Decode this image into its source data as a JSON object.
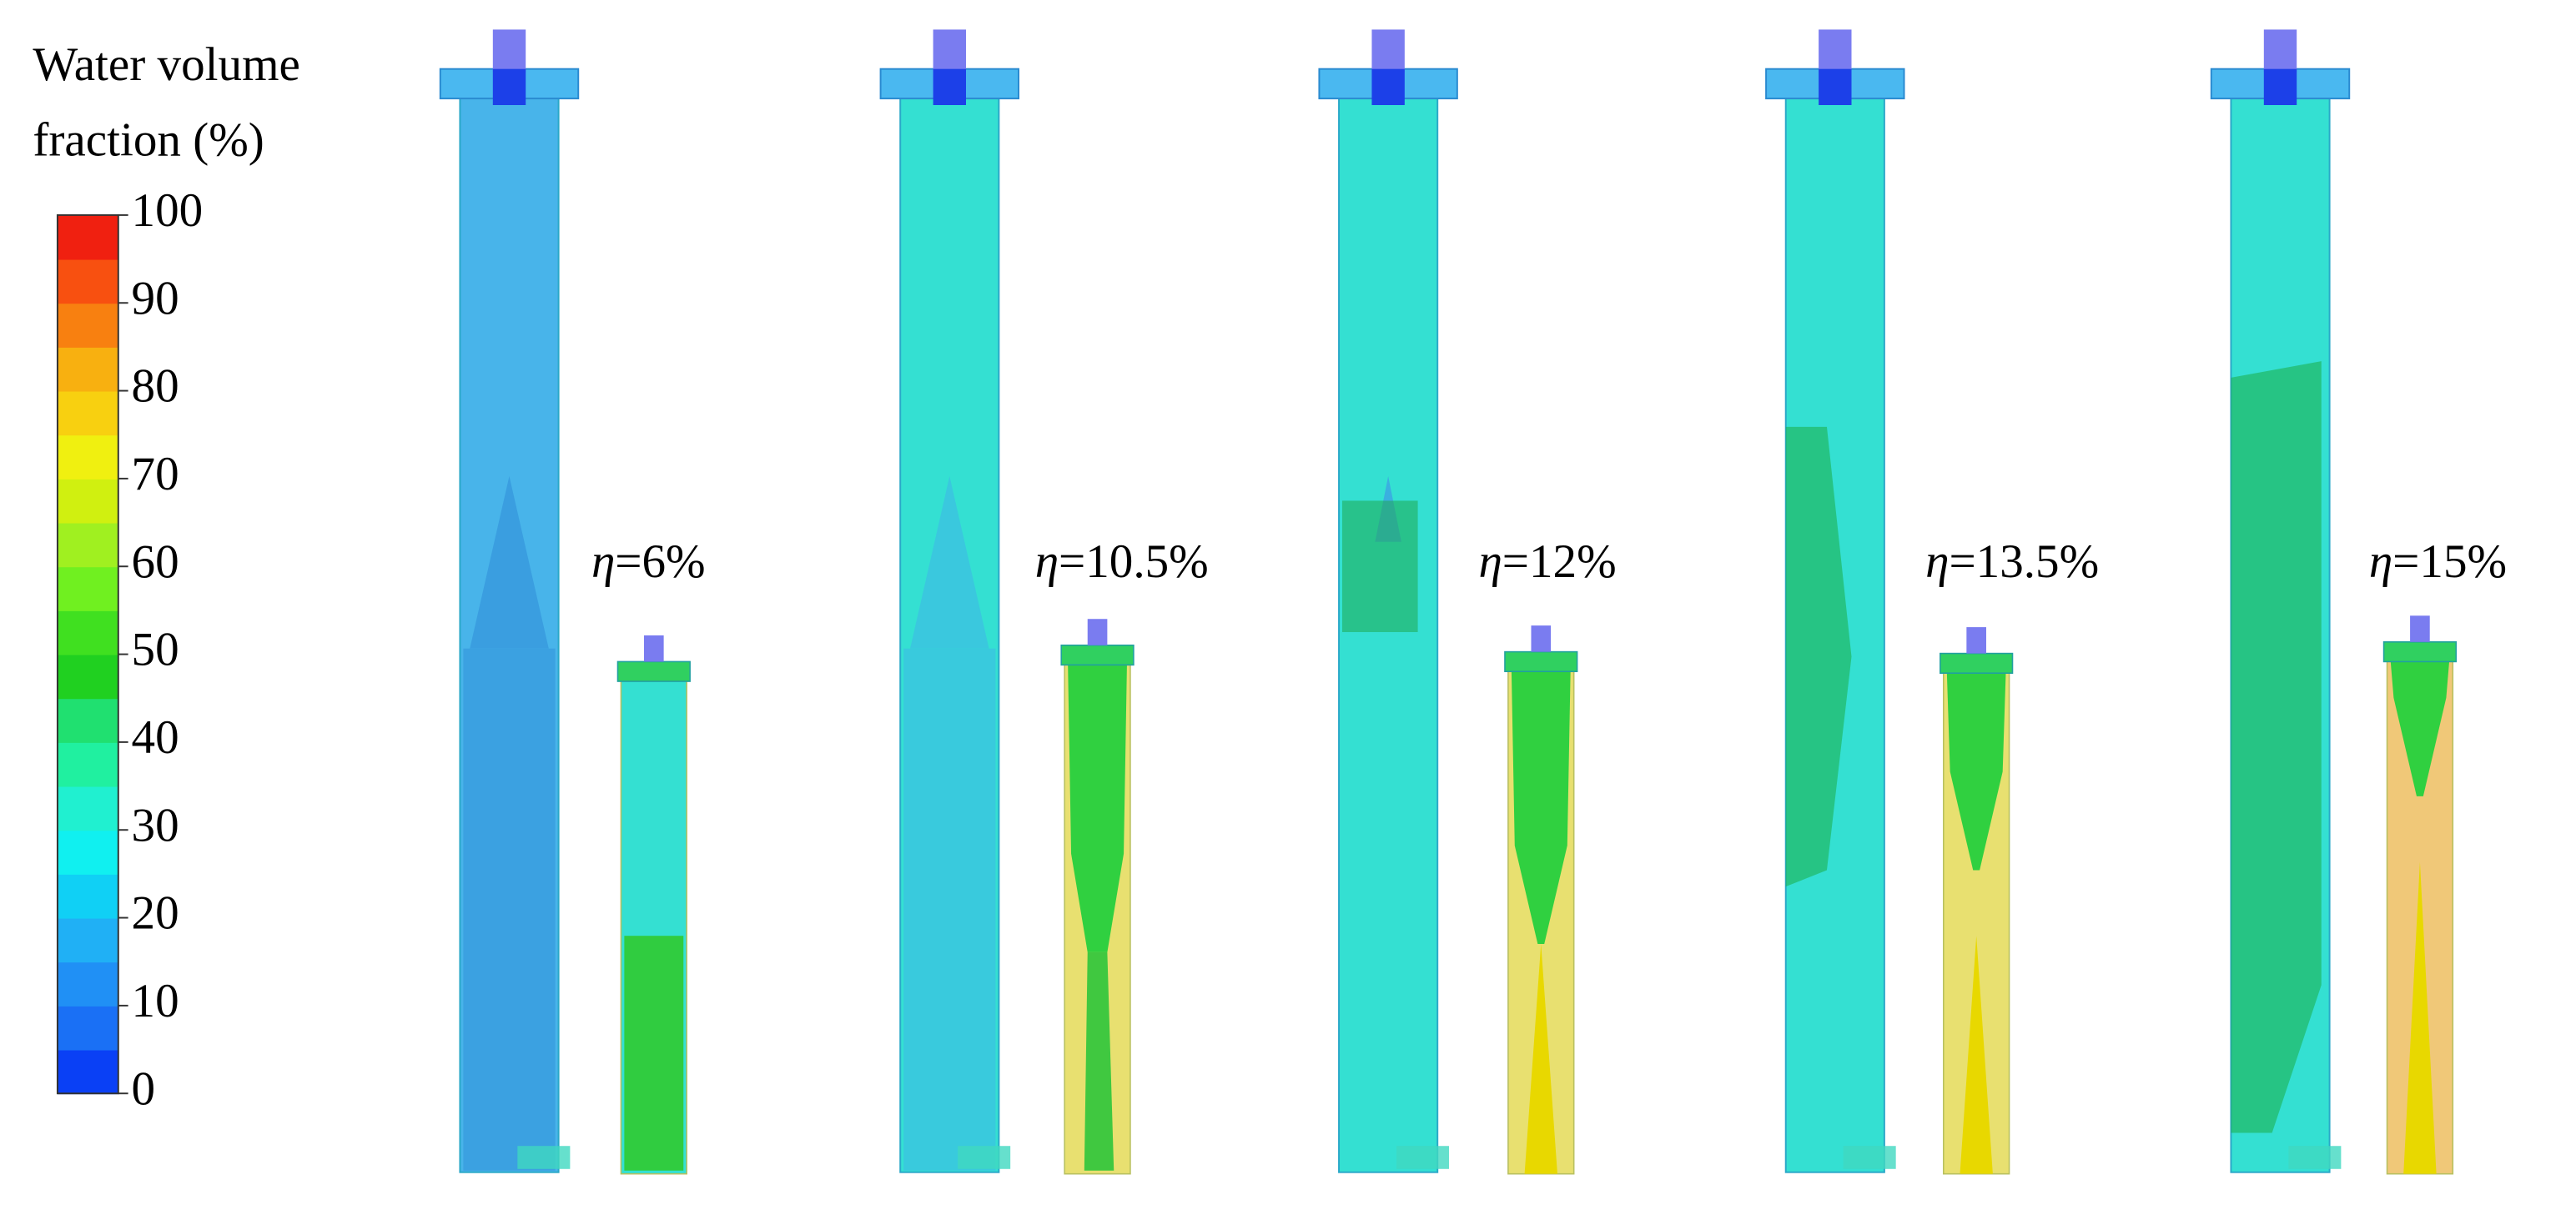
{
  "colorbar": {
    "title_lines": [
      "Water volume",
      "fraction (%)"
    ],
    "ticks": [
      "100",
      "90",
      "80",
      "70",
      "60",
      "50",
      "40",
      "30",
      "20",
      "10",
      "0"
    ]
  },
  "panels": [
    {
      "symbol": "η",
      "text": "=6%"
    },
    {
      "symbol": "η",
      "text": "=10.5%"
    },
    {
      "symbol": "η",
      "text": "=12%"
    },
    {
      "symbol": "η",
      "text": "=13.5%"
    },
    {
      "symbol": "η",
      "text": "=15%"
    }
  ]
}
